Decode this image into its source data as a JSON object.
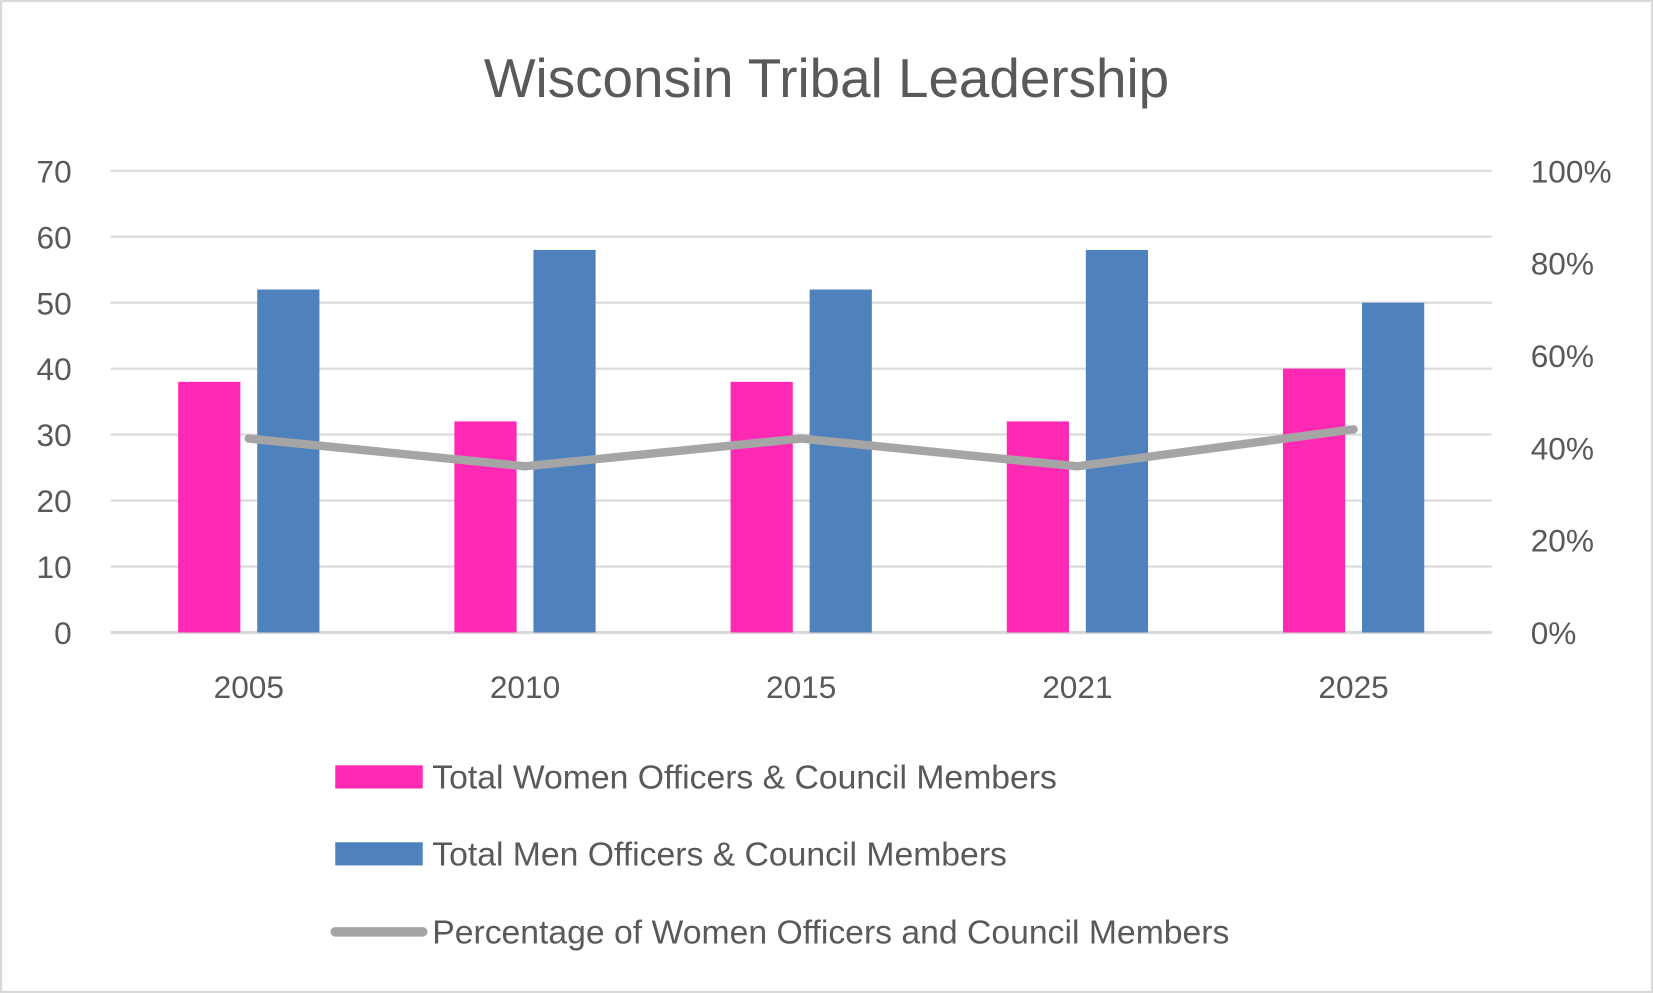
{
  "chart_data": {
    "type": "bar",
    "title": "Wisconsin Tribal Leadership",
    "categories": [
      "2005",
      "2010",
      "2015",
      "2021",
      "2025"
    ],
    "series": [
      {
        "name": "Total Women Officers & Council Members",
        "type": "bar",
        "axis": "left",
        "color": "#FF29B4",
        "values": [
          38,
          32,
          38,
          32,
          40
        ]
      },
      {
        "name": "Total Men Officers & Council Members",
        "type": "bar",
        "axis": "left",
        "color": "#4F81BD",
        "values": [
          52,
          58,
          52,
          58,
          50
        ]
      },
      {
        "name": "Percentage of  Women Officers and Council Members",
        "type": "line",
        "axis": "right",
        "color": "#A5A5A5",
        "values": [
          0.42,
          0.36,
          0.42,
          0.36,
          0.44
        ]
      }
    ],
    "y_left": {
      "min": 0,
      "max": 70,
      "ticks": [
        "0",
        "10",
        "20",
        "30",
        "40",
        "50",
        "60",
        "70"
      ]
    },
    "y_right": {
      "min": 0,
      "max": 1,
      "ticks": [
        "0%",
        "20%",
        "40%",
        "60%",
        "80%",
        "100%"
      ]
    },
    "grid": true,
    "legend_position": "bottom"
  }
}
